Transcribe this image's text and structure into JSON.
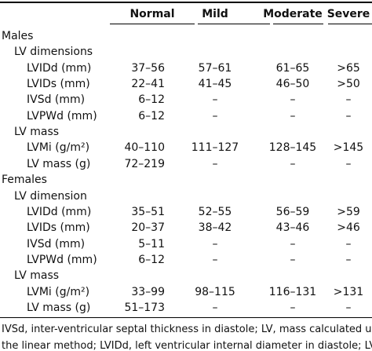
{
  "table": {
    "header": [
      "Normal",
      "Mild",
      "Moderate",
      "Severe"
    ],
    "sections": [
      {
        "title": "Males",
        "groups": [
          {
            "title": "LV dimensions",
            "rows": [
              {
                "label": "LVIDd (mm)",
                "cells": [
                  "37–56",
                  "57–61",
                  "61–65",
                  ">65"
                ]
              },
              {
                "label": "LVIDs (mm)",
                "cells": [
                  "22–41",
                  "41–45",
                  "46–50",
                  ">50"
                ]
              },
              {
                "label": "IVSd (mm)",
                "cells": [
                  "6–12",
                  "–",
                  "–",
                  "–"
                ]
              },
              {
                "label": "LVPWd (mm)",
                "cells": [
                  "6–12",
                  "–",
                  "–",
                  "–"
                ]
              }
            ]
          },
          {
            "title": "LV mass",
            "rows": [
              {
                "label": "LVMi (g/m²)",
                "cells": [
                  "40–110",
                  "111–127",
                  "128–145",
                  ">145"
                ]
              },
              {
                "label": "LV mass (g)",
                "cells": [
                  "72–219",
                  "–",
                  "–",
                  "–"
                ]
              }
            ]
          }
        ]
      },
      {
        "title": "Females",
        "groups": [
          {
            "title": "LV dimension",
            "rows": [
              {
                "label": "LVIDd (mm)",
                "cells": [
                  "35–51",
                  "52–55",
                  "56–59",
                  ">59"
                ]
              },
              {
                "label": "LVIDs (mm)",
                "cells": [
                  "20–37",
                  "38–42",
                  "43–46",
                  ">46"
                ]
              },
              {
                "label": "IVSd (mm)",
                "cells": [
                  "5–11",
                  "–",
                  "–",
                  "–"
                ]
              },
              {
                "label": "LVPWd (mm)",
                "cells": [
                  "6–12",
                  "–",
                  "–",
                  "–"
                ]
              }
            ]
          },
          {
            "title": "LV mass",
            "rows": [
              {
                "label": "LVMi (g/m²)",
                "cells": [
                  "33–99",
                  "98–115",
                  "116–131",
                  ">131"
                ]
              },
              {
                "label": "LV mass (g)",
                "cells": [
                  "51–173",
                  "–",
                  "–",
                  "–"
                ]
              }
            ]
          }
        ]
      }
    ]
  },
  "footnote": [
    "IVSd, inter-ventricular septal thickness in diastole; LV, mass calculated using",
    "the linear method; LVIDd, left ventricular internal diameter in diastole; LVIDs"
  ]
}
